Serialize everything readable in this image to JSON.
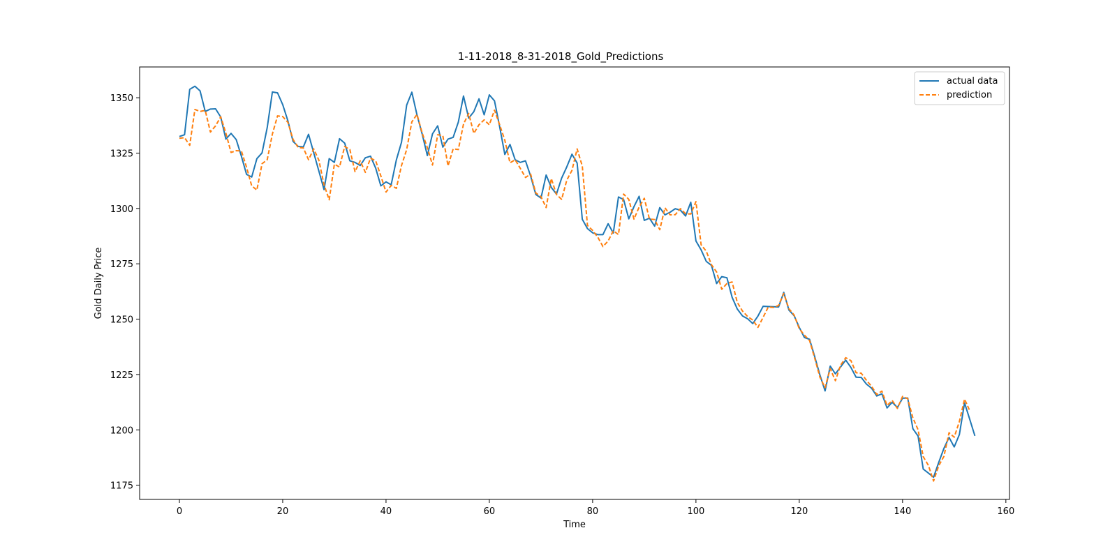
{
  "chart_data": {
    "type": "line",
    "title": "1-11-2018_8-31-2018_Gold_Predictions",
    "xlabel": "Time",
    "ylabel": "Gold Daily Price",
    "xlim": [
      -7.7,
      160.7
    ],
    "ylim": [
      1168.6,
      1363.9
    ],
    "xticks": [
      0,
      20,
      40,
      60,
      80,
      100,
      120,
      140,
      160
    ],
    "yticks": [
      1175,
      1200,
      1225,
      1250,
      1275,
      1300,
      1325,
      1350
    ],
    "grid": false,
    "legend_position": "top-right",
    "series": [
      {
        "name": "actual data",
        "color": "#1f77b4",
        "style": "solid",
        "values": [
          1332.5,
          1333.3,
          1353.8,
          1355.2,
          1353.1,
          1343.8,
          1344.9,
          1345.0,
          1341.3,
          1331.3,
          1333.9,
          1331.1,
          1323.6,
          1315.4,
          1314.2,
          1322.5,
          1325.1,
          1336.5,
          1352.6,
          1352.2,
          1346.9,
          1339.6,
          1330.3,
          1328.0,
          1327.8,
          1333.5,
          1325.2,
          1316.9,
          1308.5,
          1322.5,
          1320.8,
          1331.5,
          1329.5,
          1321.5,
          1320.8,
          1319.4,
          1322.9,
          1323.6,
          1318.2,
          1310.2,
          1312.0,
          1310.7,
          1321.9,
          1329.9,
          1346.7,
          1352.5,
          1342.2,
          1333.6,
          1323.9,
          1333.7,
          1337.3,
          1327.7,
          1331.3,
          1332.1,
          1339.0,
          1350.8,
          1340.8,
          1343.7,
          1349.5,
          1342.3,
          1351.3,
          1348.6,
          1336.9,
          1324.4,
          1328.9,
          1322.0,
          1320.8,
          1321.5,
          1314.6,
          1306.3,
          1304.7,
          1315.1,
          1309.5,
          1306.5,
          1313.7,
          1318.8,
          1324.5,
          1320.5,
          1295.1,
          1290.9,
          1289.0,
          1288.2,
          1288.2,
          1293.1,
          1288.9,
          1305.2,
          1304.0,
          1295.3,
          1300.8,
          1305.5,
          1294.6,
          1295.6,
          1292.0,
          1300.4,
          1297.1,
          1298.3,
          1299.9,
          1299.2,
          1296.6,
          1302.8,
          1285.3,
          1281.3,
          1276.1,
          1274.3,
          1266.1,
          1269.2,
          1268.7,
          1259.9,
          1254.6,
          1251.5,
          1250.2,
          1248.0,
          1251.4,
          1255.8,
          1255.7,
          1255.6,
          1255.5,
          1262.1,
          1254.1,
          1251.6,
          1246.3,
          1241.7,
          1240.9,
          1233.0,
          1224.8,
          1217.6,
          1228.8,
          1225.3,
          1228.4,
          1231.5,
          1228.2,
          1223.8,
          1223.7,
          1220.7,
          1218.8,
          1215.3,
          1216.3,
          1209.9,
          1212.5,
          1210.1,
          1214.3,
          1214.4,
          1200.5,
          1197.2,
          1182.3,
          1180.5,
          1178.6,
          1185.3,
          1191.6,
          1196.6,
          1192.3,
          1197.9,
          1212.2,
          1204.8,
          1197.3
        ]
      },
      {
        "name": "prediction",
        "color": "#ff7f0e",
        "style": "dashed",
        "values": [
          1331.7,
          1332.0,
          1328.5,
          1344.7,
          1343.8,
          1344.3,
          1334.5,
          1337.3,
          1341.4,
          1334.0,
          1325.3,
          1326.1,
          1326.0,
          1318.6,
          1310.2,
          1308.3,
          1320.2,
          1322.0,
          1333.6,
          1341.8,
          1341.5,
          1338.9,
          1331.2,
          1327.5,
          1327.3,
          1322.0,
          1326.9,
          1321.8,
          1310.7,
          1303.9,
          1320.0,
          1318.7,
          1328.0,
          1326.6,
          1316.6,
          1321.5,
          1316.3,
          1322.7,
          1321.5,
          1314.7,
          1307.4,
          1310.4,
          1309.1,
          1319.4,
          1326.6,
          1339.1,
          1342.5,
          1334.1,
          1327.5,
          1319.6,
          1333.3,
          1332.9,
          1319.2,
          1326.9,
          1326.6,
          1338.1,
          1342.9,
          1333.9,
          1337.8,
          1340.0,
          1337.8,
          1344.4,
          1337.8,
          1330.8,
          1320.6,
          1322.0,
          1318.1,
          1314.0,
          1315.5,
          1307.0,
          1305.3,
          1300.4,
          1313.5,
          1306.3,
          1304.1,
          1312.8,
          1317.2,
          1326.9,
          1319.1,
          1292.3,
          1290.1,
          1287.0,
          1282.8,
          1285.3,
          1289.9,
          1288.2,
          1306.5,
          1304.1,
          1295.2,
          1300.6,
          1304.6,
          1295.2,
          1295.0,
          1290.4,
          1300.3,
          1297.1,
          1297.2,
          1299.9,
          1297.6,
          1297.5,
          1303.1,
          1283.6,
          1280.7,
          1274.6,
          1271.3,
          1263.5,
          1266.1,
          1266.8,
          1257.6,
          1253.7,
          1251.2,
          1249.6,
          1246.3,
          1250.8,
          1255.5,
          1255.3,
          1256.2,
          1261.6,
          1254.7,
          1251.9,
          1245.7,
          1242.8,
          1240.3,
          1232.3,
          1223.8,
          1219.1,
          1227.6,
          1222.2,
          1229.2,
          1232.6,
          1231.3,
          1225.8,
          1225.6,
          1222.4,
          1219.7,
          1216.0,
          1217.5,
          1211.0,
          1213.3,
          1209.7,
          1215.1,
          1214.1,
          1205.4,
          1200.1,
          1187.9,
          1184.0,
          1176.9,
          1183.8,
          1188.0,
          1198.7,
          1196.7,
          1203.8,
          1213.9,
          1208.7
        ]
      }
    ]
  }
}
